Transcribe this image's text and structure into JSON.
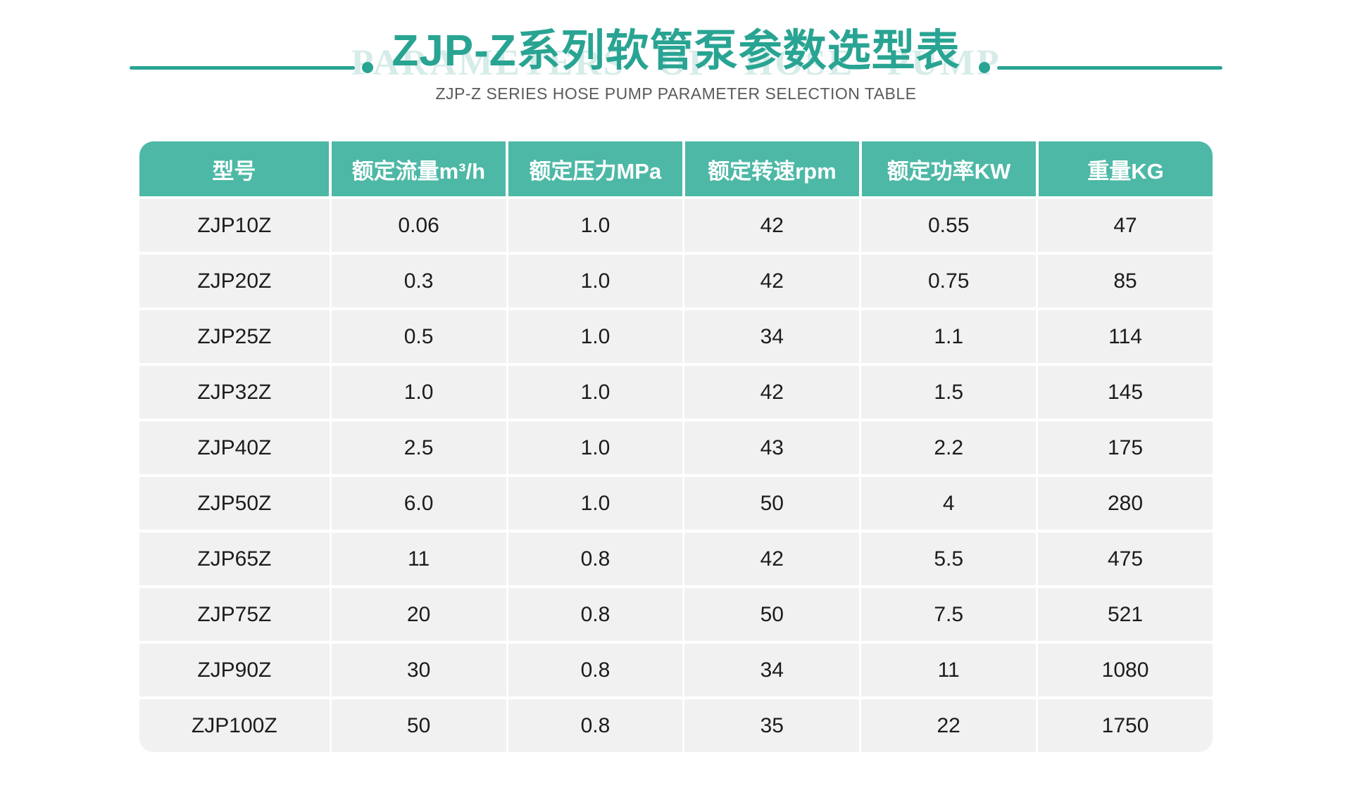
{
  "header": {
    "watermark": "PARAMETERS OF HOSE PUMP",
    "title": "ZJP-Z系列软管泵参数选型表",
    "subtitle": "ZJP-Z SERIES HOSE PUMP PARAMETER SELECTION TABLE"
  },
  "colors": {
    "accent": "#29a493",
    "table_header_bg": "#4db8a6",
    "row_bg": "#f1f1f2",
    "watermark": "#d6ece9",
    "subtitle_text": "#5a5a5a",
    "cell_text": "#1c1c1c"
  },
  "table": {
    "columns": [
      "型号",
      "额定流量m³/h",
      "额定压力MPa",
      "额定转速rpm",
      "额定功率KW",
      "重量KG"
    ],
    "rows": [
      [
        "ZJP10Z",
        "0.06",
        "1.0",
        "42",
        "0.55",
        "47"
      ],
      [
        "ZJP20Z",
        "0.3",
        "1.0",
        "42",
        "0.75",
        "85"
      ],
      [
        "ZJP25Z",
        "0.5",
        "1.0",
        "34",
        "1.1",
        "114"
      ],
      [
        "ZJP32Z",
        "1.0",
        "1.0",
        "42",
        "1.5",
        "145"
      ],
      [
        "ZJP40Z",
        "2.5",
        "1.0",
        "43",
        "2.2",
        "175"
      ],
      [
        "ZJP50Z",
        "6.0",
        "1.0",
        "50",
        "4",
        "280"
      ],
      [
        "ZJP65Z",
        "11",
        "0.8",
        "42",
        "5.5",
        "475"
      ],
      [
        "ZJP75Z",
        "20",
        "0.8",
        "50",
        "7.5",
        "521"
      ],
      [
        "ZJP90Z",
        "30",
        "0.8",
        "34",
        "11",
        "1080"
      ],
      [
        "ZJP100Z",
        "50",
        "0.8",
        "35",
        "22",
        "1750"
      ]
    ]
  }
}
